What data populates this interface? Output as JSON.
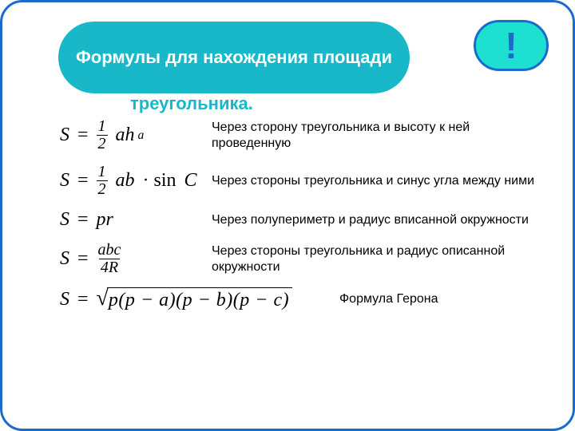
{
  "colors": {
    "border": "#1a6bcc",
    "title_bg": "#18b8c9",
    "title_text": "#ffffff",
    "overflow_text": "#18b8c9",
    "bang_bg": "#1de0d0",
    "bang_text": "#1a6bcc",
    "body_text": "#000000"
  },
  "title": {
    "line12": "Формулы для нахождения площади",
    "line3": "треугольника."
  },
  "bang": "!",
  "rows": [
    {
      "formula_html": "<span>S</span><span class='upright'>&nbsp;=&nbsp;</span><span class='frac'><span class='num'>1</span><span class='den'>2</span></span><span>&nbsp;ah</span><span class='sub'>a</span>",
      "desc": "Через сторону треугольника и высоту к ней проведенную"
    },
    {
      "formula_html": "<span>S</span><span class='upright'>&nbsp;=&nbsp;</span><span class='frac'><span class='num'>1</span><span class='den'>2</span></span><span>&nbsp;ab</span><span class='upright'>&nbsp;·&nbsp;sin&nbsp;</span><span>C</span>",
      "desc": "Через стороны треугольника и синус угла между ними"
    },
    {
      "formula_html": "<span>S</span><span class='upright'>&nbsp;=&nbsp;</span><span>pr</span>",
      "desc": "Через полупериметр и радиус вписанной окружности"
    },
    {
      "formula_html": "<span>S</span><span class='upright'>&nbsp;=&nbsp;</span><span class='frac'><span class='num'>abc</span><span class='den'>4<span>R</span></span></span>",
      "desc": "Через стороны треугольника и радиус описанной окружности"
    },
    {
      "formula_html": "<span>S</span><span class='upright'>&nbsp;=&nbsp;</span><span class='sqrt-wrap'><span class='sqrt-sym'>√</span><span class='sqrt-arg'>p(p − a)(p − b)(p − c)</span></span>",
      "desc": "Формула Герона"
    }
  ]
}
